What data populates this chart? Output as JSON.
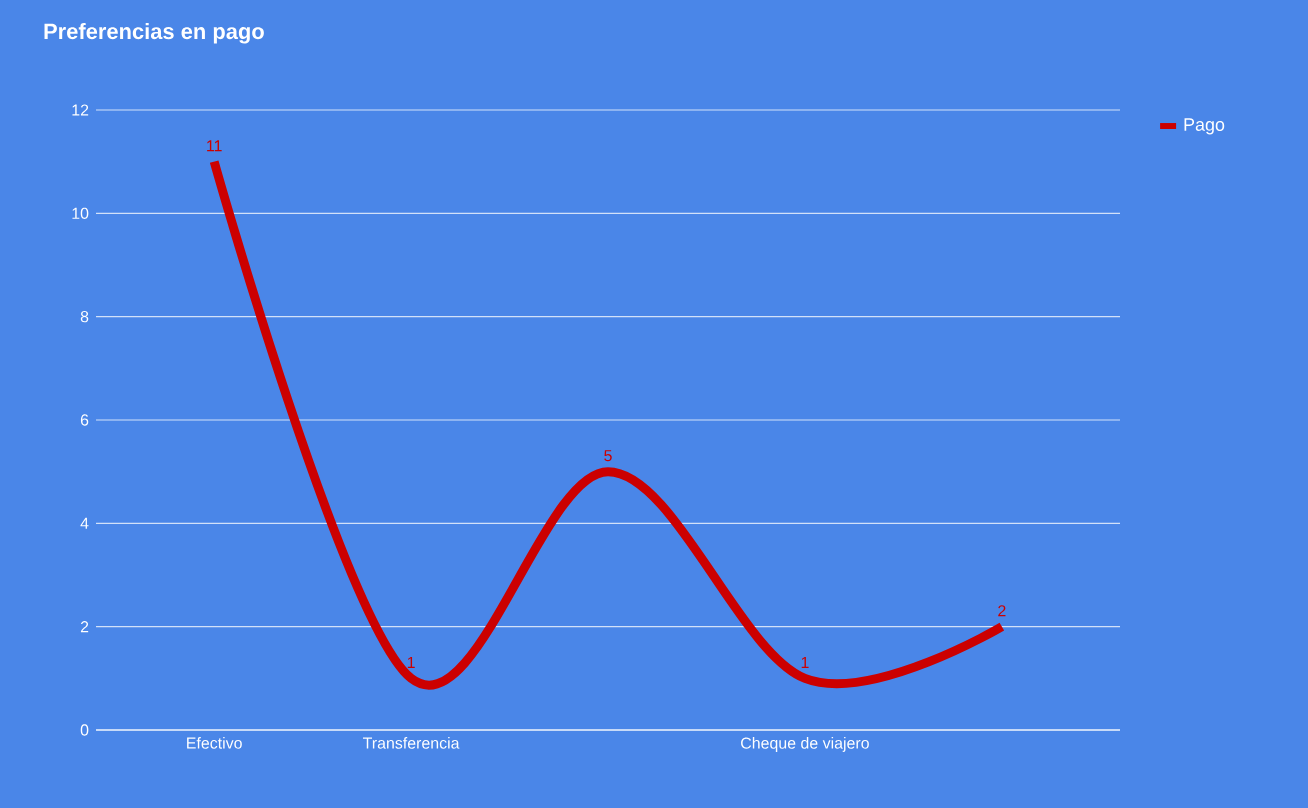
{
  "chart_data": {
    "type": "line",
    "title": "Preferencias en pago",
    "categories": [
      "Efectivo",
      "Transferencia",
      null,
      "Cheque de viajero",
      null
    ],
    "series": [
      {
        "name": "Pago",
        "color": "#cc0000",
        "values": [
          11,
          1,
          5,
          1,
          2
        ]
      }
    ],
    "ylim": [
      0,
      12
    ],
    "yticks": [
      0,
      2,
      4,
      6,
      8,
      10,
      12
    ],
    "grid": "y",
    "legend": "right",
    "data_labels": true,
    "marker": "none",
    "line_style": "solid"
  }
}
